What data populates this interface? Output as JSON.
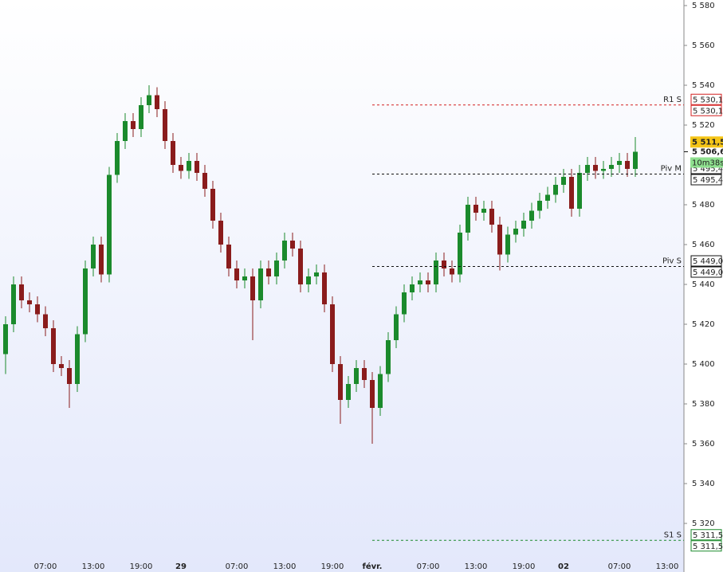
{
  "chart_data": {
    "type": "candlestick",
    "categories": [
      null,
      null,
      null,
      null,
      null,
      "07:00",
      null,
      null,
      null,
      null,
      null,
      "13:00",
      null,
      null,
      null,
      null,
      null,
      "19:00",
      null,
      null,
      null,
      null,
      "29",
      null,
      null,
      null,
      null,
      null,
      null,
      "07:00",
      null,
      null,
      null,
      null,
      null,
      "13:00",
      null,
      null,
      null,
      null,
      null,
      "19:00",
      null,
      null,
      null,
      null,
      "févr.",
      null,
      null,
      null,
      null,
      null,
      null,
      "07:00",
      null,
      null,
      null,
      null,
      null,
      "13:00",
      null,
      null,
      null,
      null,
      null,
      "19:00",
      null,
      null,
      null,
      null,
      "02",
      null,
      null,
      null,
      null,
      null,
      null,
      "07:00",
      null,
      null,
      null,
      null,
      null,
      "13:00"
    ],
    "up_color": "#1b8a2c",
    "down_color": "#8a1c1c",
    "open": [
      5405,
      5420,
      5440,
      5432,
      5430,
      5425,
      5418,
      5400,
      5398,
      5390,
      5415,
      5448,
      5460,
      5445,
      5495,
      5512,
      5522,
      5518,
      5530,
      5535,
      5528,
      5512,
      5500,
      5497,
      5502,
      5496,
      5488,
      5472,
      5460,
      5448,
      5442,
      5444,
      5432,
      5448,
      5444,
      5452,
      5462,
      5458,
      5440,
      5444,
      5446,
      5430,
      5400,
      5382,
      5390,
      5398,
      5392,
      5378,
      5395,
      5412,
      5425,
      5436,
      5440,
      5442,
      5440,
      5452,
      5448,
      5445,
      5466,
      5480,
      5476,
      5478,
      5470,
      5455,
      5465,
      5468,
      5472,
      5477,
      5482,
      5485,
      5490,
      5494,
      5478,
      5496,
      5500,
      5497,
      5498,
      5500,
      5502,
      5498,
      null,
      null,
      null,
      null
    ],
    "high": [
      5424,
      5444,
      5444,
      5436,
      5434,
      5429,
      5422,
      5404,
      5402,
      5419,
      5452,
      5464,
      5464,
      5499,
      5516,
      5526,
      5526,
      5534,
      5540,
      5539,
      5532,
      5516,
      5504,
      5506,
      5506,
      5500,
      5492,
      5476,
      5464,
      5452,
      5448,
      5448,
      5452,
      5452,
      5456,
      5466,
      5466,
      5462,
      5448,
      5450,
      5450,
      5434,
      5404,
      5394,
      5402,
      5402,
      5396,
      5399,
      5416,
      5429,
      5440,
      5444,
      5446,
      5446,
      5456,
      5456,
      5452,
      5470,
      5484,
      5484,
      5482,
      5482,
      5474,
      5469,
      5472,
      5476,
      5481,
      5486,
      5489,
      5494,
      5498,
      5498,
      5500,
      5504,
      5504,
      5502,
      5504,
      5506,
      5506,
      5514,
      null,
      null,
      null,
      null
    ],
    "low": [
      5395,
      5416,
      5428,
      5426,
      5421,
      5414,
      5396,
      5394,
      5378,
      5386,
      5411,
      5444,
      5441,
      5441,
      5491,
      5508,
      5514,
      5514,
      5526,
      5524,
      5508,
      5496,
      5493,
      5493,
      5492,
      5484,
      5468,
      5456,
      5444,
      5438,
      5438,
      5412,
      5428,
      5440,
      5440,
      5448,
      5454,
      5436,
      5436,
      5440,
      5426,
      5396,
      5370,
      5378,
      5386,
      5388,
      5360,
      5374,
      5391,
      5408,
      5421,
      5432,
      5436,
      5436,
      5436,
      5444,
      5441,
      5441,
      5462,
      5472,
      5472,
      5466,
      5447,
      5451,
      5461,
      5464,
      5468,
      5473,
      5478,
      5481,
      5486,
      5474,
      5474,
      5492,
      5493,
      5493,
      5494,
      5496,
      5494,
      5494,
      null,
      null,
      null,
      null
    ],
    "close": [
      5420,
      5440,
      5432,
      5430,
      5425,
      5418,
      5400,
      5398,
      5390,
      5415,
      5448,
      5460,
      5445,
      5495,
      5512,
      5522,
      5518,
      5530,
      5535,
      5528,
      5512,
      5500,
      5497,
      5502,
      5496,
      5488,
      5472,
      5460,
      5448,
      5442,
      5444,
      5432,
      5448,
      5444,
      5452,
      5462,
      5458,
      5440,
      5444,
      5446,
      5430,
      5400,
      5382,
      5390,
      5398,
      5392,
      5378,
      5395,
      5412,
      5425,
      5436,
      5440,
      5442,
      5440,
      5452,
      5448,
      5445,
      5466,
      5480,
      5476,
      5478,
      5470,
      5455,
      5465,
      5468,
      5472,
      5477,
      5482,
      5485,
      5490,
      5494,
      5478,
      5496,
      5500,
      5497,
      5498,
      5500,
      5502,
      5498,
      5506.6,
      null,
      null,
      null,
      null
    ],
    "ylim": [
      5295.6,
      5582.8
    ],
    "yticks": [
      {
        "value": 5320,
        "label": "5 320"
      },
      {
        "value": 5340,
        "label": "5 340"
      },
      {
        "value": 5360,
        "label": "5 360"
      },
      {
        "value": 5380,
        "label": "5 380"
      },
      {
        "value": 5400,
        "label": "5 400"
      },
      {
        "value": 5420,
        "label": "5 420"
      },
      {
        "value": 5440,
        "label": "5 440"
      },
      {
        "value": 5460,
        "label": "5 460"
      },
      {
        "value": 5480,
        "label": "5 480"
      },
      {
        "value": 5520,
        "label": "5 520"
      },
      {
        "value": 5540,
        "label": "5 540"
      },
      {
        "value": 5560,
        "label": "5 560"
      },
      {
        "value": 5580,
        "label": "5 580"
      }
    ],
    "levels": [
      {
        "name": "R1 S",
        "value": 5530.1,
        "label": "5 530,1",
        "color": "#d42020"
      },
      {
        "name": "Piv M",
        "value": 5495.4,
        "label": "5 495,4",
        "color": "#111111"
      },
      {
        "name": "Piv S",
        "value": 5449.0,
        "label": "5 449,0",
        "color": "#111111"
      },
      {
        "name": "S1 S",
        "value": 5311.5,
        "label": "5 311,5",
        "color": "#1b8a2c"
      }
    ],
    "high_tag": {
      "value": 5511.5,
      "label": "5 511,5"
    },
    "last_price": {
      "value": 5506.6,
      "label": "5 506,6"
    },
    "timer": "10m38s"
  }
}
